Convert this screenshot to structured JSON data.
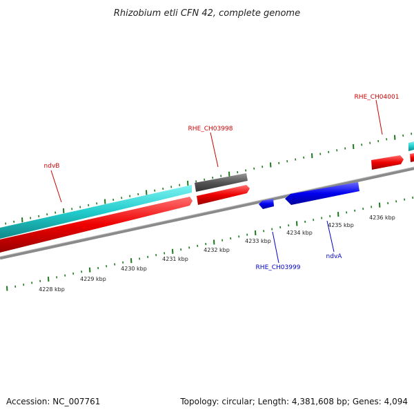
{
  "title": "Rhizobium etli CFN 42, complete genome",
  "footer": {
    "accession": "Accession: NC_007761",
    "summary": "Topology: circular; Length: 4,381,608 bp; Genes: 4,094"
  },
  "scale": {
    "labels": [
      "4228 kbp",
      "4229 kbp",
      "4230 kbp",
      "4231 kbp",
      "4232 kbp",
      "4233 kbp",
      "4234 kbp",
      "4235 kbp",
      "4236 kbp"
    ]
  },
  "colors": {
    "forward_cds": "#ee0000",
    "reverse_cds": "#0000ee",
    "rna": "#22cccc",
    "other_feature": "#555555",
    "backbone": "#888888",
    "ticks": "#1a7a1a",
    "label_forward": "#cc0000",
    "label_reverse": "#0000cc"
  },
  "genes": {
    "ndvB": "ndvB",
    "rhe_ch03998": "RHE_CH03998",
    "rhe_ch04001": "RHE_CH04001",
    "rhe_ch03999": "RHE_CH03999",
    "ndvA": "ndvA"
  }
}
